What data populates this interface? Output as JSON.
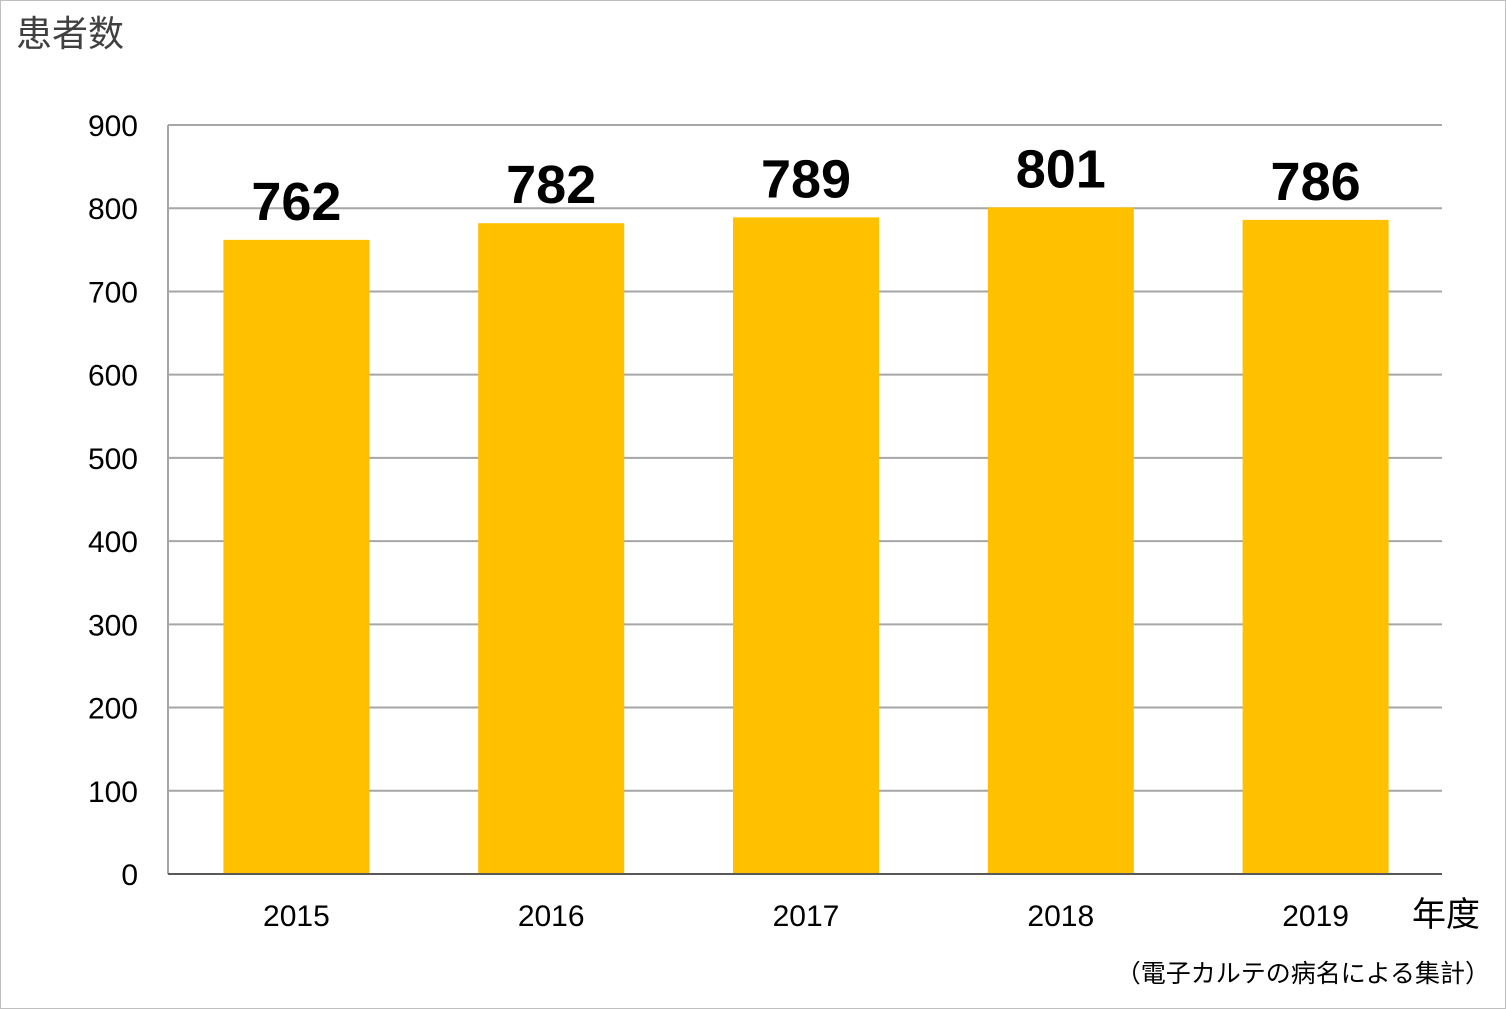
{
  "chart_data": {
    "type": "bar",
    "ylabel": "患者数",
    "xlabel": "年度",
    "categories": [
      "2015",
      "2016",
      "2017",
      "2018",
      "2019"
    ],
    "values": [
      762,
      782,
      789,
      801,
      786
    ],
    "ylim": [
      0,
      900
    ],
    "yticks": [
      0,
      100,
      200,
      300,
      400,
      500,
      600,
      700,
      800,
      900
    ],
    "grid": true,
    "bar_color": "#FFC000",
    "grid_color": "#a6a6a6",
    "footnote": "（電子カルテの病名による集計）"
  }
}
